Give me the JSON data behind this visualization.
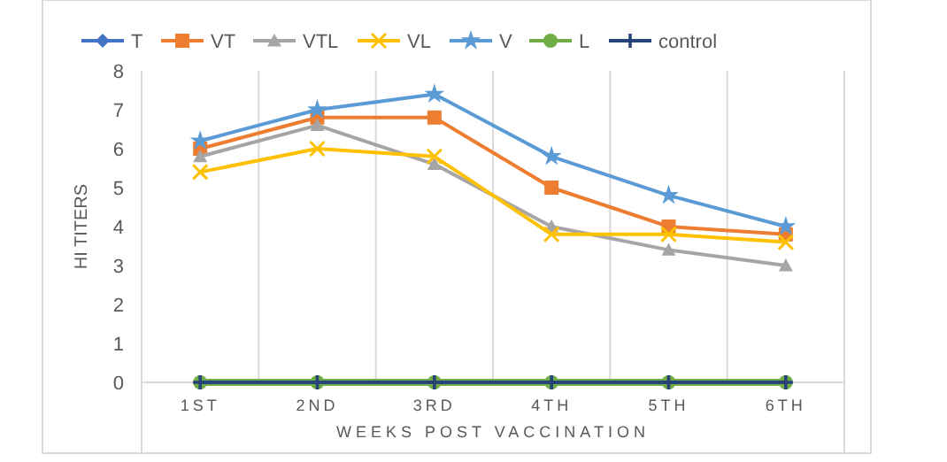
{
  "chart_data": {
    "type": "line",
    "xlabel": "WEEKS POST VACCINATION",
    "ylabel": "HI TITERS",
    "categories": [
      "1ST",
      "2ND",
      "3RD",
      "4TH",
      "5TH",
      "6TH"
    ],
    "ylim": [
      0,
      8
    ],
    "yticks": [
      0,
      1,
      2,
      3,
      4,
      5,
      6,
      7,
      8
    ],
    "grid": "x",
    "legend": "top",
    "series": [
      {
        "name": "T",
        "color": "#4472c4",
        "marker": "diamond",
        "values": [
          null,
          null,
          null,
          null,
          null,
          null
        ]
      },
      {
        "name": "VT",
        "color": "#ed7d31",
        "marker": "square",
        "values": [
          6,
          6.8,
          6.8,
          5,
          4,
          3.8
        ]
      },
      {
        "name": "VTL",
        "color": "#a5a5a5",
        "marker": "triangle",
        "values": [
          5.8,
          6.6,
          5.6,
          4,
          3.4,
          3
        ]
      },
      {
        "name": "VL",
        "color": "#ffc000",
        "marker": "cross",
        "values": [
          5.4,
          6,
          5.8,
          3.8,
          3.8,
          3.6
        ]
      },
      {
        "name": "V",
        "color": "#5b9bd5",
        "marker": "star",
        "values": [
          6.2,
          7,
          7.4,
          5.8,
          4.8,
          4
        ]
      },
      {
        "name": "L",
        "color": "#70ad47",
        "marker": "circle",
        "values": [
          0,
          0,
          0,
          0,
          0,
          0
        ]
      },
      {
        "name": "control",
        "color": "#264478",
        "marker": "plus",
        "values": [
          0,
          0,
          0,
          0,
          0,
          0
        ]
      }
    ]
  }
}
